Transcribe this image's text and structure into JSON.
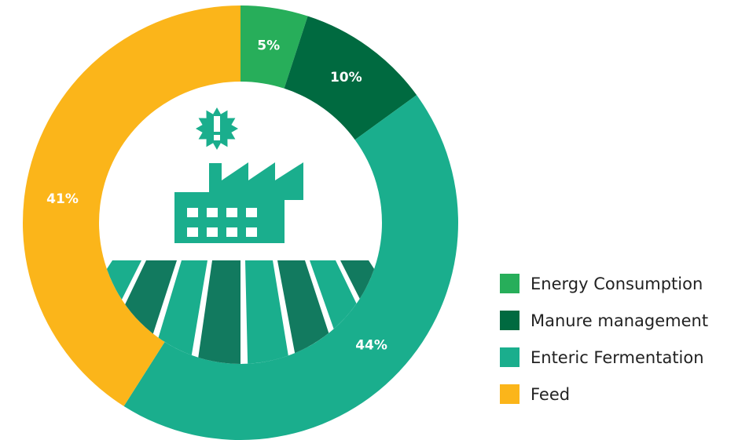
{
  "chart_data": {
    "type": "pie",
    "donut": true,
    "categories": [
      "Energy Consumption",
      "Manure management",
      "Enteric Fermentation",
      "Feed"
    ],
    "values": [
      5,
      10,
      44,
      41
    ],
    "value_labels": [
      "5%",
      "10%",
      "44%",
      "41%"
    ],
    "colors": [
      "#27ae5a",
      "#006a40",
      "#1aae8d",
      "#fbb51a"
    ],
    "legend": "right"
  }
}
